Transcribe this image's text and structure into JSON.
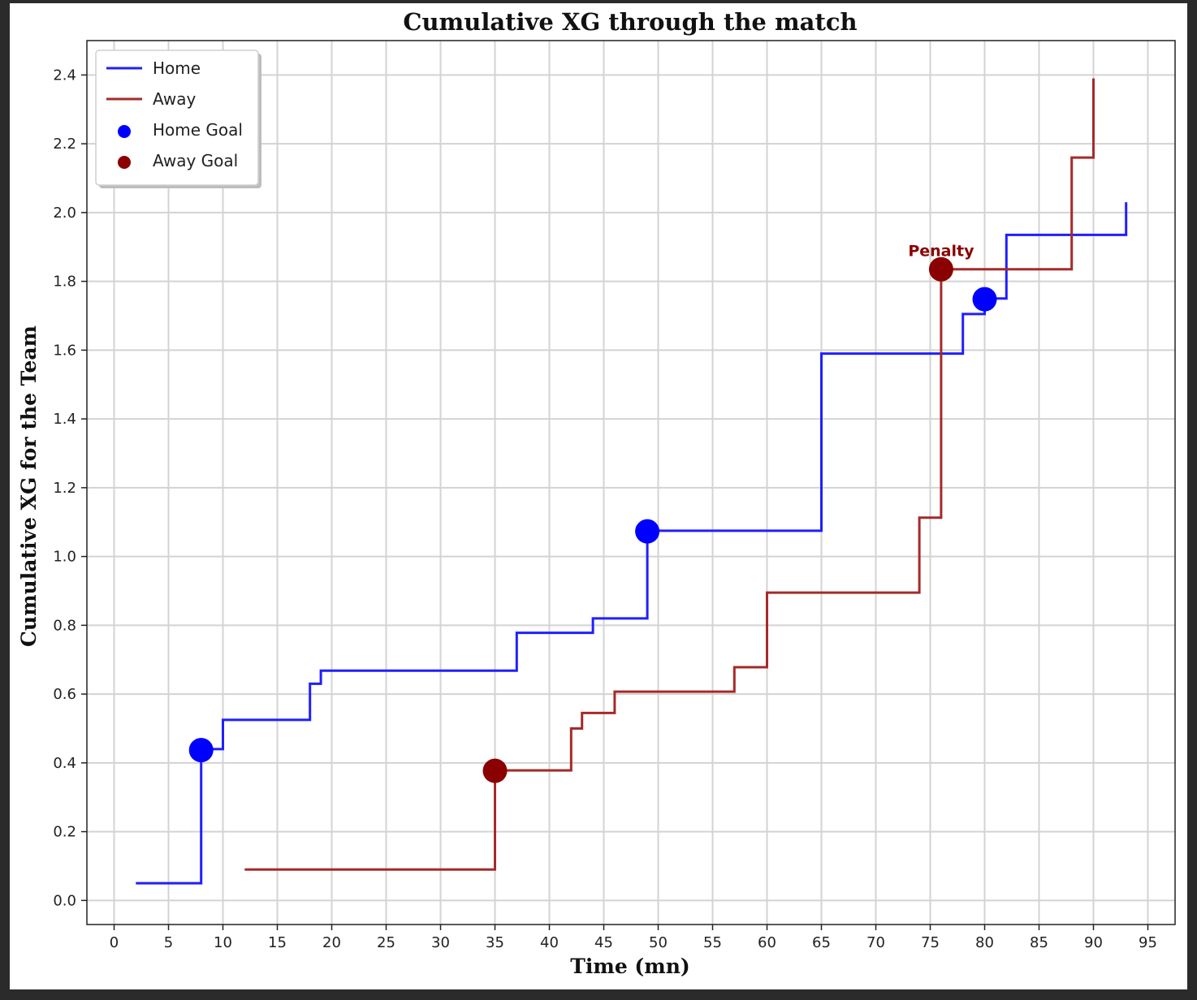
{
  "chart_data": {
    "type": "line",
    "title": "Cumulative XG through the match",
    "xlabel": "Time (mn)",
    "ylabel": "Cumulative XG for the Team",
    "xlim": [
      -2.5,
      97.5
    ],
    "ylim": [
      -0.07,
      2.5
    ],
    "xticks": [
      0,
      5,
      10,
      15,
      20,
      25,
      30,
      35,
      40,
      45,
      50,
      55,
      60,
      65,
      70,
      75,
      80,
      85,
      90,
      95
    ],
    "yticks": [
      "0.0",
      "0.2",
      "0.4",
      "0.6",
      "0.8",
      "1.0",
      "1.2",
      "1.4",
      "1.6",
      "1.8",
      "2.0",
      "2.2",
      "2.4"
    ],
    "grid": true,
    "legend_position": "top-left",
    "colors": {
      "home": "#1f1fff",
      "away": "#a52a2a",
      "home_goal": "#0000ff",
      "away_goal": "#8b0000"
    },
    "series": [
      {
        "name": "Home",
        "style": "step",
        "x": [
          2,
          8,
          10,
          18,
          19,
          37,
          44,
          49,
          65,
          78,
          80,
          82,
          93
        ],
        "y": [
          0.05,
          0.44,
          0.525,
          0.63,
          0.668,
          0.778,
          0.82,
          1.075,
          1.59,
          1.705,
          1.75,
          1.935,
          2.03
        ]
      },
      {
        "name": "Away",
        "style": "step",
        "x": [
          12,
          35,
          42,
          43,
          46,
          57,
          60,
          74,
          76,
          88,
          90
        ],
        "y": [
          0.09,
          0.378,
          0.5,
          0.545,
          0.607,
          0.678,
          0.895,
          1.113,
          1.835,
          2.16,
          2.39
        ]
      }
    ],
    "goals": [
      {
        "name": "Home Goal",
        "points": [
          {
            "x": 8,
            "y": 0.437
          },
          {
            "x": 49,
            "y": 1.073
          },
          {
            "x": 80,
            "y": 1.748
          }
        ]
      },
      {
        "name": "Away Goal",
        "points": [
          {
            "x": 35,
            "y": 0.377
          },
          {
            "x": 76,
            "y": 1.835
          }
        ]
      }
    ],
    "annotations": [
      {
        "text": "Penalty",
        "x": 76,
        "y": 1.89
      }
    ]
  }
}
